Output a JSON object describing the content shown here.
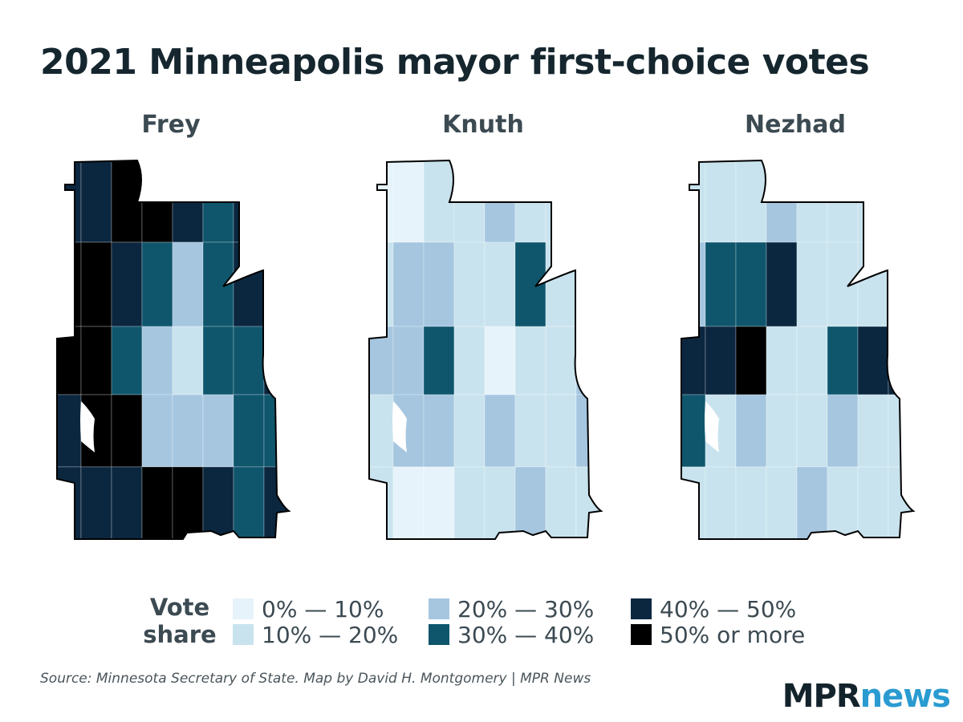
{
  "title": "2021 Minneapolis mayor first-choice votes",
  "maps": [
    {
      "name": "Frey",
      "levels": [
        4,
        4,
        5,
        5,
        4,
        3,
        4,
        5,
        5,
        5,
        4,
        3,
        2,
        3,
        4,
        4,
        5,
        5,
        3,
        2,
        1,
        3,
        3,
        4,
        4,
        5,
        5,
        2,
        2,
        2,
        3,
        3,
        4
      ]
    },
    {
      "name": "Knuth",
      "levels": [
        0,
        0,
        1,
        1,
        2,
        1,
        1,
        0,
        1,
        2,
        2,
        1,
        1,
        3,
        1,
        1,
        2,
        2,
        3,
        1,
        0,
        1,
        1,
        2,
        1,
        2,
        2,
        1,
        2,
        1,
        1,
        2,
        1
      ]
    },
    {
      "name": "Nezhad",
      "levels": [
        1,
        1,
        1,
        2,
        1,
        1,
        1,
        1,
        2,
        3,
        3,
        4,
        1,
        1,
        1,
        3,
        4,
        4,
        5,
        1,
        1,
        3,
        4,
        4,
        3,
        1,
        2,
        1,
        1,
        2,
        1,
        1,
        1
      ]
    }
  ],
  "legend": {
    "title_line1": "Vote",
    "title_line2": "share",
    "items": [
      {
        "label": "0% — 10%",
        "color": "#e6f3fa"
      },
      {
        "label": "10% — 20%",
        "color": "#c9e3ee"
      },
      {
        "label": "20% — 30%",
        "color": "#a6c6e0"
      },
      {
        "label": "30% — 40%",
        "color": "#0f566d"
      },
      {
        "label": "40% — 50%",
        "color": "#0b2740"
      },
      {
        "label": "50% or more",
        "color": "#000000"
      }
    ]
  },
  "source": "Source: Minnesota Secretary of State. Map by David H. Montgomery | MPR News",
  "logo": {
    "part1": "MPR",
    "part2": "news"
  },
  "colors": {
    "title": "#15262e",
    "lake": "#ffffff",
    "border": "#000000"
  }
}
